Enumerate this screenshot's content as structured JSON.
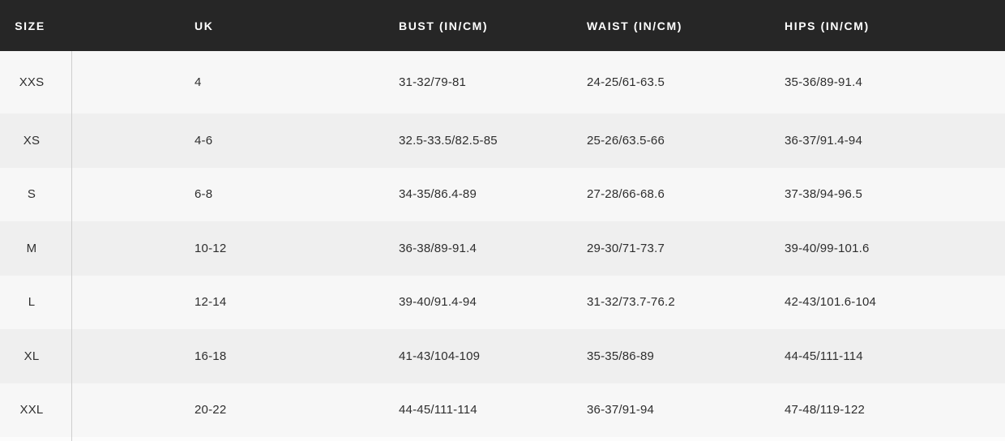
{
  "table": {
    "columns": [
      {
        "key": "size",
        "label": "SIZE"
      },
      {
        "key": "uk",
        "label": "UK"
      },
      {
        "key": "bust",
        "label": "BUST (IN/CM)"
      },
      {
        "key": "waist",
        "label": "WAIST (IN/CM)"
      },
      {
        "key": "hips",
        "label": "HIPS (IN/CM)"
      }
    ],
    "rows": [
      {
        "size": "XXS",
        "uk": "4",
        "bust": "31-32/79-81",
        "waist": "24-25/61-63.5",
        "hips": "35-36/89-91.4"
      },
      {
        "size": "XS",
        "uk": "4-6",
        "bust": "32.5-33.5/82.5-85",
        "waist": "25-26/63.5-66",
        "hips": "36-37/91.4-94"
      },
      {
        "size": "S",
        "uk": "6-8",
        "bust": "34-35/86.4-89",
        "waist": "27-28/66-68.6",
        "hips": "37-38/94-96.5"
      },
      {
        "size": "M",
        "uk": "10-12",
        "bust": "36-38/89-91.4",
        "waist": "29-30/71-73.7",
        "hips": "39-40/99-101.6"
      },
      {
        "size": "L",
        "uk": "12-14",
        "bust": "39-40/91.4-94",
        "waist": "31-32/73.7-76.2",
        "hips": "42-43/101.6-104"
      },
      {
        "size": "XL",
        "uk": "16-18",
        "bust": "41-43/104-109",
        "waist": "35-35/86-89",
        "hips": "44-45/111-114"
      },
      {
        "size": "XXL",
        "uk": "20-22",
        "bust": "44-45/111-114",
        "waist": "36-37/91-94",
        "hips": "47-48/119-122"
      }
    ]
  },
  "colors": {
    "header_bg": "#262626",
    "header_text": "#ffffff",
    "row_odd": "#f7f7f7",
    "row_even": "#efefef",
    "body_text": "#2e2e2e",
    "divider": "#cfcfcf"
  }
}
